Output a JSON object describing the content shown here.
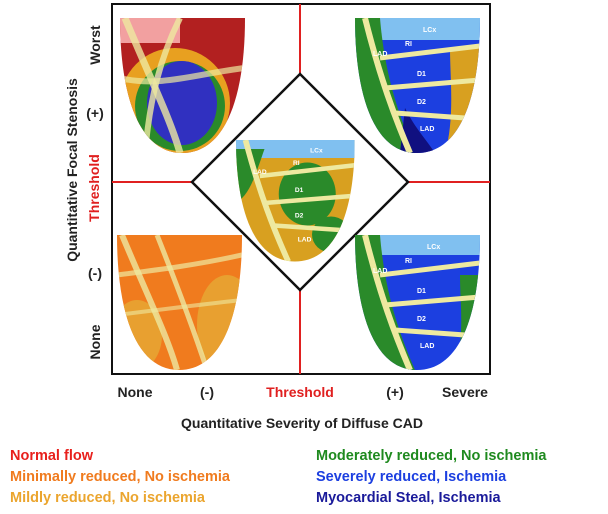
{
  "y_axis": {
    "title": "Quantitative Focal Stenosis",
    "worst": "Worst",
    "plus": "(+)",
    "threshold": "Threshold",
    "minus": "(-)",
    "none": "None"
  },
  "x_axis": {
    "title": "Quantitative Severity of Diffuse CAD",
    "none": "None",
    "minus": "(-)",
    "threshold": "Threshold",
    "plus": "(+)",
    "severe": "Severe"
  },
  "legend": [
    "Normal flow",
    "Minimally reduced, No ischemia",
    "Mildly reduced, No ischemia",
    "Moderately reduced, No ischemia",
    "Severely reduced, Ischemia",
    "Myocardial Steal, Ischemia"
  ],
  "maps": [
    {
      "labels": [
        "LCx",
        "RI",
        "LAD",
        "D1",
        "D2",
        "LAD"
      ]
    },
    {
      "labels": [
        "LCx",
        "RI",
        "LAD",
        "D1",
        "D2",
        "LAD"
      ]
    },
    {
      "labels": [
        "LCx",
        "RI",
        "LAD",
        "D1",
        "D2",
        "LAD"
      ]
    }
  ]
}
